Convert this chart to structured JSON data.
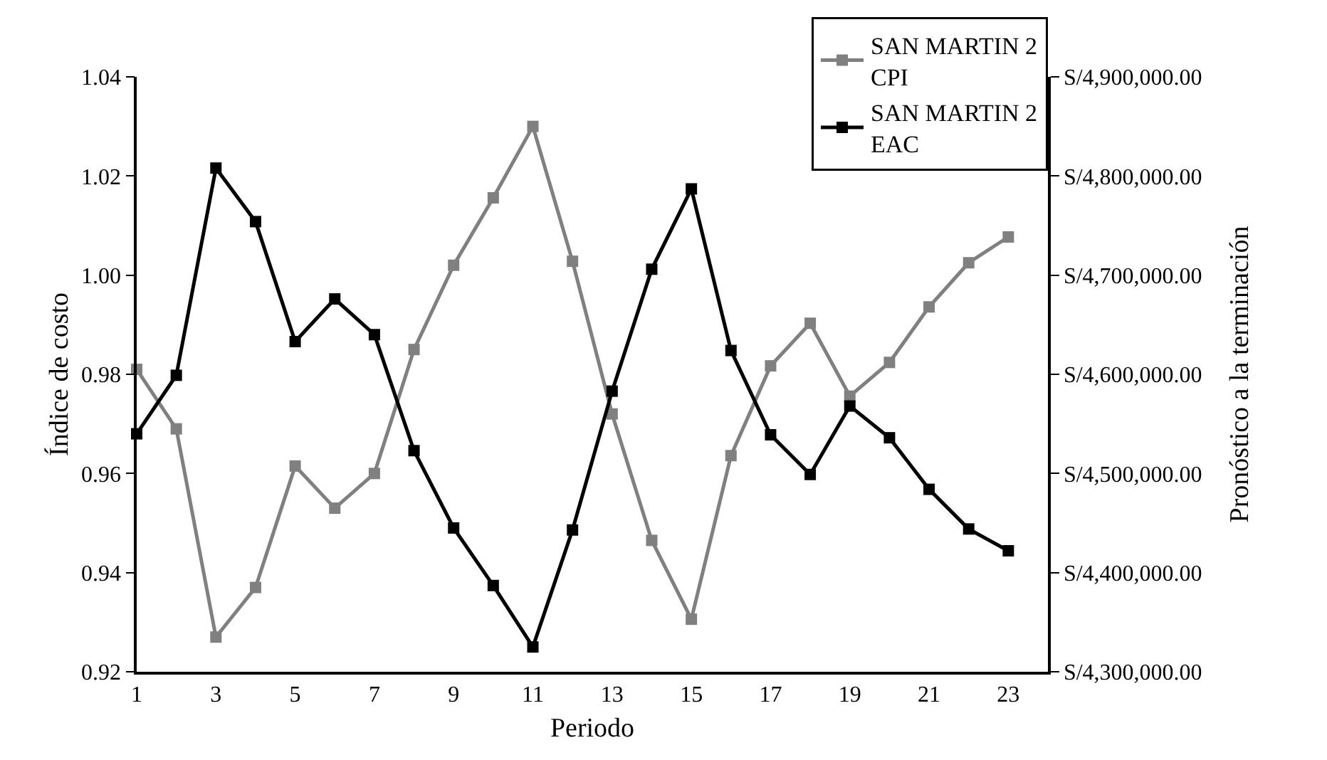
{
  "chart_data": {
    "type": "line",
    "xlabel": "Periodo",
    "ylabel": "Índice de costo",
    "y2label": "Pronóstico a la terminación",
    "x": [
      1,
      2,
      3,
      4,
      5,
      6,
      7,
      8,
      9,
      10,
      11,
      12,
      13,
      14,
      15,
      16,
      17,
      18,
      19,
      20,
      21,
      22,
      23
    ],
    "series": [
      {
        "name": "SAN MARTIN 2 CPI",
        "color": "#808080",
        "values": [
          0.981,
          0.969,
          0.927,
          0.937,
          0.9615,
          0.953,
          0.96,
          0.985,
          1.002,
          1.0156,
          1.03,
          1.0028,
          0.972,
          0.9465,
          0.9306,
          0.9636,
          0.9817,
          0.9903,
          0.9756,
          0.9824,
          0.9936,
          1.0025,
          1.0077
        ]
      },
      {
        "name": "SAN MARTIN 2 EAC",
        "color": "#000000",
        "axis": "y2",
        "values": [
          4540000,
          4599000,
          4808000,
          4754000,
          4633000,
          4676000,
          4640000,
          4523000,
          4445000,
          4387000,
          4325000,
          4443000,
          4583000,
          4706000,
          4787000,
          4624000,
          4539000,
          4499000,
          4568000,
          4536000,
          4484000,
          4444000,
          4422000
        ]
      }
    ],
    "xlim": [
      1,
      24
    ],
    "xticks": [
      1,
      3,
      5,
      7,
      9,
      11,
      13,
      15,
      17,
      19,
      21,
      23
    ],
    "ylim": [
      0.92,
      1.04
    ],
    "yticks": [
      {
        "value": 0.92,
        "label": "0.92"
      },
      {
        "value": 0.94,
        "label": "0.94"
      },
      {
        "value": 0.96,
        "label": "0.96"
      },
      {
        "value": 0.98,
        "label": "0.98"
      },
      {
        "value": 1.0,
        "label": "1.00"
      },
      {
        "value": 1.02,
        "label": "1.02"
      },
      {
        "value": 1.04,
        "label": "1.04"
      }
    ],
    "y2lim": [
      4300000,
      4900000
    ],
    "y2ticks": [
      {
        "value": 4300000,
        "label": "S/4,300,000.00"
      },
      {
        "value": 4400000,
        "label": "S/4,400,000.00"
      },
      {
        "value": 4500000,
        "label": "S/4,500,000.00"
      },
      {
        "value": 4600000,
        "label": "S/4,600,000.00"
      },
      {
        "value": 4700000,
        "label": "S/4,700,000.00"
      },
      {
        "value": 4800000,
        "label": "S/4,800,000.00"
      },
      {
        "value": 4900000,
        "label": "S/4,900,000.00"
      }
    ],
    "grid": false,
    "legend": "top right",
    "marker": "square",
    "line_style": "solid"
  }
}
